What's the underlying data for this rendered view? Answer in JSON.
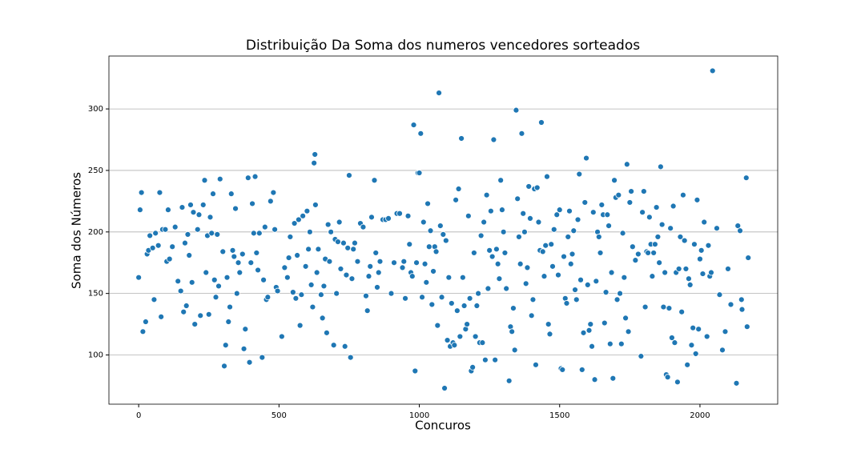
{
  "chart_data": {
    "type": "scatter",
    "title": "Distribuição Da Soma dos numeros vencedores sorteados",
    "x_label": "Concuros",
    "y_label": "Soma dos Números",
    "color": "#1f77b4",
    "grid": true,
    "xlim": [
      -106,
      2277
    ],
    "ylim": [
      60,
      343
    ],
    "xticks": [
      0,
      500,
      1000,
      1500,
      2000
    ],
    "yticks": [
      100,
      150,
      200,
      250,
      300
    ],
    "x": [
      0,
      5,
      10,
      15,
      25,
      30,
      35,
      40,
      50,
      55,
      60,
      70,
      75,
      80,
      85,
      95,
      100,
      105,
      110,
      120,
      130,
      140,
      150,
      155,
      160,
      165,
      170,
      175,
      180,
      185,
      190,
      195,
      200,
      210,
      215,
      220,
      230,
      235,
      240,
      245,
      250,
      255,
      260,
      265,
      270,
      275,
      280,
      285,
      290,
      300,
      305,
      310,
      315,
      320,
      325,
      330,
      335,
      340,
      345,
      350,
      355,
      360,
      370,
      375,
      380,
      390,
      395,
      400,
      405,
      410,
      415,
      420,
      425,
      430,
      440,
      445,
      450,
      455,
      460,
      470,
      480,
      485,
      490,
      495,
      510,
      520,
      530,
      535,
      540,
      550,
      555,
      560,
      565,
      570,
      575,
      580,
      585,
      595,
      600,
      605,
      610,
      615,
      620,
      625,
      628,
      630,
      635,
      640,
      650,
      655,
      660,
      665,
      670,
      675,
      680,
      685,
      695,
      700,
      705,
      710,
      715,
      720,
      730,
      735,
      740,
      745,
      750,
      755,
      760,
      765,
      770,
      780,
      790,
      800,
      810,
      815,
      820,
      825,
      830,
      840,
      845,
      850,
      855,
      860,
      870,
      880,
      890,
      900,
      910,
      920,
      930,
      940,
      945,
      950,
      960,
      965,
      970,
      975,
      980,
      985,
      990,
      995,
      1000,
      1005,
      1010,
      1015,
      1020,
      1025,
      1030,
      1035,
      1040,
      1045,
      1050,
      1055,
      1060,
      1065,
      1070,
      1075,
      1080,
      1085,
      1090,
      1095,
      1100,
      1105,
      1110,
      1115,
      1120,
      1125,
      1130,
      1135,
      1140,
      1145,
      1150,
      1155,
      1160,
      1165,
      1170,
      1175,
      1180,
      1185,
      1190,
      1195,
      1200,
      1205,
      1210,
      1215,
      1220,
      1225,
      1230,
      1235,
      1240,
      1245,
      1250,
      1255,
      1260,
      1265,
      1270,
      1275,
      1280,
      1285,
      1290,
      1295,
      1300,
      1305,
      1310,
      1320,
      1325,
      1330,
      1335,
      1340,
      1345,
      1350,
      1355,
      1360,
      1365,
      1370,
      1375,
      1380,
      1385,
      1390,
      1395,
      1400,
      1405,
      1410,
      1415,
      1420,
      1425,
      1430,
      1435,
      1440,
      1445,
      1450,
      1455,
      1460,
      1465,
      1470,
      1475,
      1480,
      1490,
      1495,
      1500,
      1505,
      1510,
      1515,
      1520,
      1525,
      1530,
      1535,
      1540,
      1545,
      1550,
      1555,
      1560,
      1565,
      1570,
      1575,
      1580,
      1585,
      1590,
      1595,
      1600,
      1605,
      1610,
      1615,
      1620,
      1625,
      1630,
      1635,
      1640,
      1645,
      1650,
      1655,
      1660,
      1665,
      1670,
      1675,
      1680,
      1685,
      1690,
      1695,
      1700,
      1705,
      1710,
      1715,
      1720,
      1725,
      1730,
      1735,
      1740,
      1745,
      1750,
      1755,
      1760,
      1770,
      1780,
      1790,
      1795,
      1800,
      1805,
      1810,
      1815,
      1820,
      1825,
      1830,
      1835,
      1840,
      1845,
      1850,
      1855,
      1860,
      1865,
      1870,
      1875,
      1880,
      1885,
      1890,
      1895,
      1900,
      1905,
      1910,
      1915,
      1920,
      1925,
      1930,
      1935,
      1940,
      1945,
      1950,
      1955,
      1960,
      1965,
      1970,
      1975,
      1980,
      1985,
      1990,
      1995,
      2000,
      2005,
      2010,
      2015,
      2045,
      2025,
      2030,
      2035,
      2040,
      2060,
      2070,
      2080,
      2090,
      2100,
      2110,
      2130,
      2135,
      2143,
      2148,
      2150,
      2165,
      2168,
      2172
    ],
    "values": [
      163,
      218,
      232,
      119,
      127,
      182,
      185,
      197,
      187,
      145,
      199,
      189,
      232,
      131,
      202,
      202,
      176,
      218,
      178,
      188,
      204,
      160,
      152,
      220,
      135,
      191,
      140,
      198,
      181,
      222,
      159,
      216,
      125,
      202,
      214,
      132,
      222,
      242,
      167,
      197,
      133,
      212,
      199,
      231,
      161,
      147,
      198,
      156,
      243,
      184,
      91,
      108,
      163,
      127,
      139,
      231,
      185,
      180,
      219,
      150,
      175,
      167,
      182,
      105,
      121,
      244,
      94,
      175,
      223,
      199,
      245,
      183,
      169,
      199,
      98,
      161,
      204,
      145,
      147,
      225,
      232,
      202,
      155,
      152,
      115,
      171,
      163,
      179,
      196,
      151,
      207,
      146,
      181,
      210,
      124,
      149,
      213,
      172,
      217,
      186,
      200,
      157,
      139,
      256,
      263,
      222,
      167,
      186,
      149,
      130,
      156,
      178,
      118,
      206,
      176,
      200,
      108,
      194,
      150,
      192,
      208,
      170,
      191,
      107,
      165,
      187,
      246,
      98,
      162,
      186,
      191,
      176,
      207,
      204,
      148,
      136,
      164,
      172,
      212,
      242,
      183,
      155,
      167,
      176,
      210,
      210,
      211,
      150,
      175,
      215,
      215,
      171,
      176,
      146,
      213,
      190,
      167,
      164,
      287,
      87,
      175,
      248,
      248,
      280,
      147,
      208,
      174,
      159,
      223,
      188,
      201,
      141,
      168,
      188,
      184,
      124,
      313,
      205,
      147,
      198,
      73,
      193,
      112,
      163,
      107,
      142,
      110,
      108,
      226,
      136,
      235,
      115,
      276,
      163,
      140,
      121,
      125,
      213,
      146,
      87,
      90,
      183,
      115,
      140,
      150,
      110,
      197,
      110,
      208,
      96,
      230,
      154,
      185,
      217,
      180,
      275,
      96,
      186,
      174,
      162,
      242,
      218,
      200,
      183,
      154,
      79,
      123,
      119,
      138,
      104,
      299,
      227,
      196,
      174,
      280,
      215,
      200,
      158,
      171,
      237,
      211,
      132,
      145,
      235,
      92,
      236,
      208,
      185,
      289,
      184,
      164,
      189,
      245,
      125,
      117,
      190,
      172,
      202,
      214,
      165,
      218,
      89,
      88,
      180,
      146,
      142,
      196,
      217,
      174,
      182,
      201,
      153,
      145,
      210,
      247,
      161,
      88,
      118,
      224,
      260,
      157,
      120,
      125,
      107,
      216,
      80,
      160,
      200,
      196,
      183,
      222,
      214,
      126,
      151,
      214,
      205,
      109,
      167,
      81,
      242,
      228,
      145,
      230,
      150,
      109,
      199,
      163,
      130,
      255,
      119,
      224,
      233,
      188,
      177,
      182,
      99,
      216,
      233,
      139,
      184,
      183,
      212,
      190,
      164,
      183,
      190,
      220,
      196,
      175,
      253,
      206,
      139,
      167,
      84,
      82,
      138,
      203,
      114,
      221,
      110,
      167,
      78,
      170,
      196,
      135,
      230,
      193,
      170,
      92,
      162,
      157,
      108,
      122,
      190,
      101,
      226,
      121,
      178,
      185,
      166,
      208,
      331,
      115,
      189,
      164,
      167,
      203,
      149,
      104,
      119,
      170,
      141,
      77,
      205,
      201,
      145,
      137,
      244,
      123,
      179
    ]
  }
}
